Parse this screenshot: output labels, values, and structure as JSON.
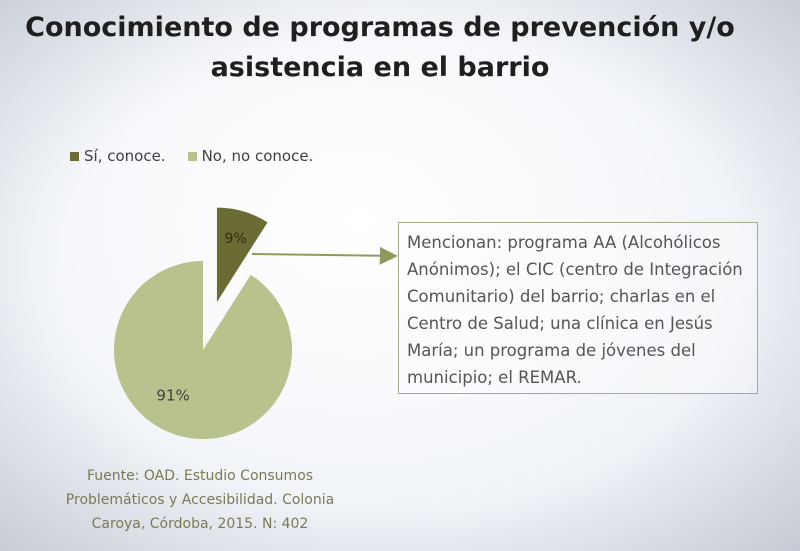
{
  "title": {
    "line1": "Conocimiento de programas de prevención y/o",
    "line2": "asistencia en el barrio"
  },
  "colors": {
    "yes": "#6b6b34",
    "no": "#b8c28c",
    "arrow": "#8f9b5e"
  },
  "chart_data": {
    "type": "pie",
    "title": "Conocimiento de programas de prevención y/o asistencia en el barrio",
    "legend_position": "top-left",
    "slices": [
      {
        "label": "Sí, conoce.",
        "value": 9,
        "display": "9%",
        "exploded": true
      },
      {
        "label": "No, no conoce.",
        "value": 91,
        "display": "91%",
        "exploded": false
      }
    ]
  },
  "callout": {
    "lines": [
      "Mencionan: programa AA (Alcohólicos",
      "Anónimos); el CIC (centro de Integración",
      "Comunitario) del barrio; charlas en el",
      "Centro de Salud; una clínica en Jesús",
      "María; un programa de jóvenes del",
      "municipio; el REMAR."
    ]
  },
  "source": {
    "lines": [
      "Fuente: OAD. Estudio Consumos",
      "Problemáticos y Accesibilidad. Colonia",
      "Caroya, Córdoba, 2015. N: 402"
    ]
  }
}
